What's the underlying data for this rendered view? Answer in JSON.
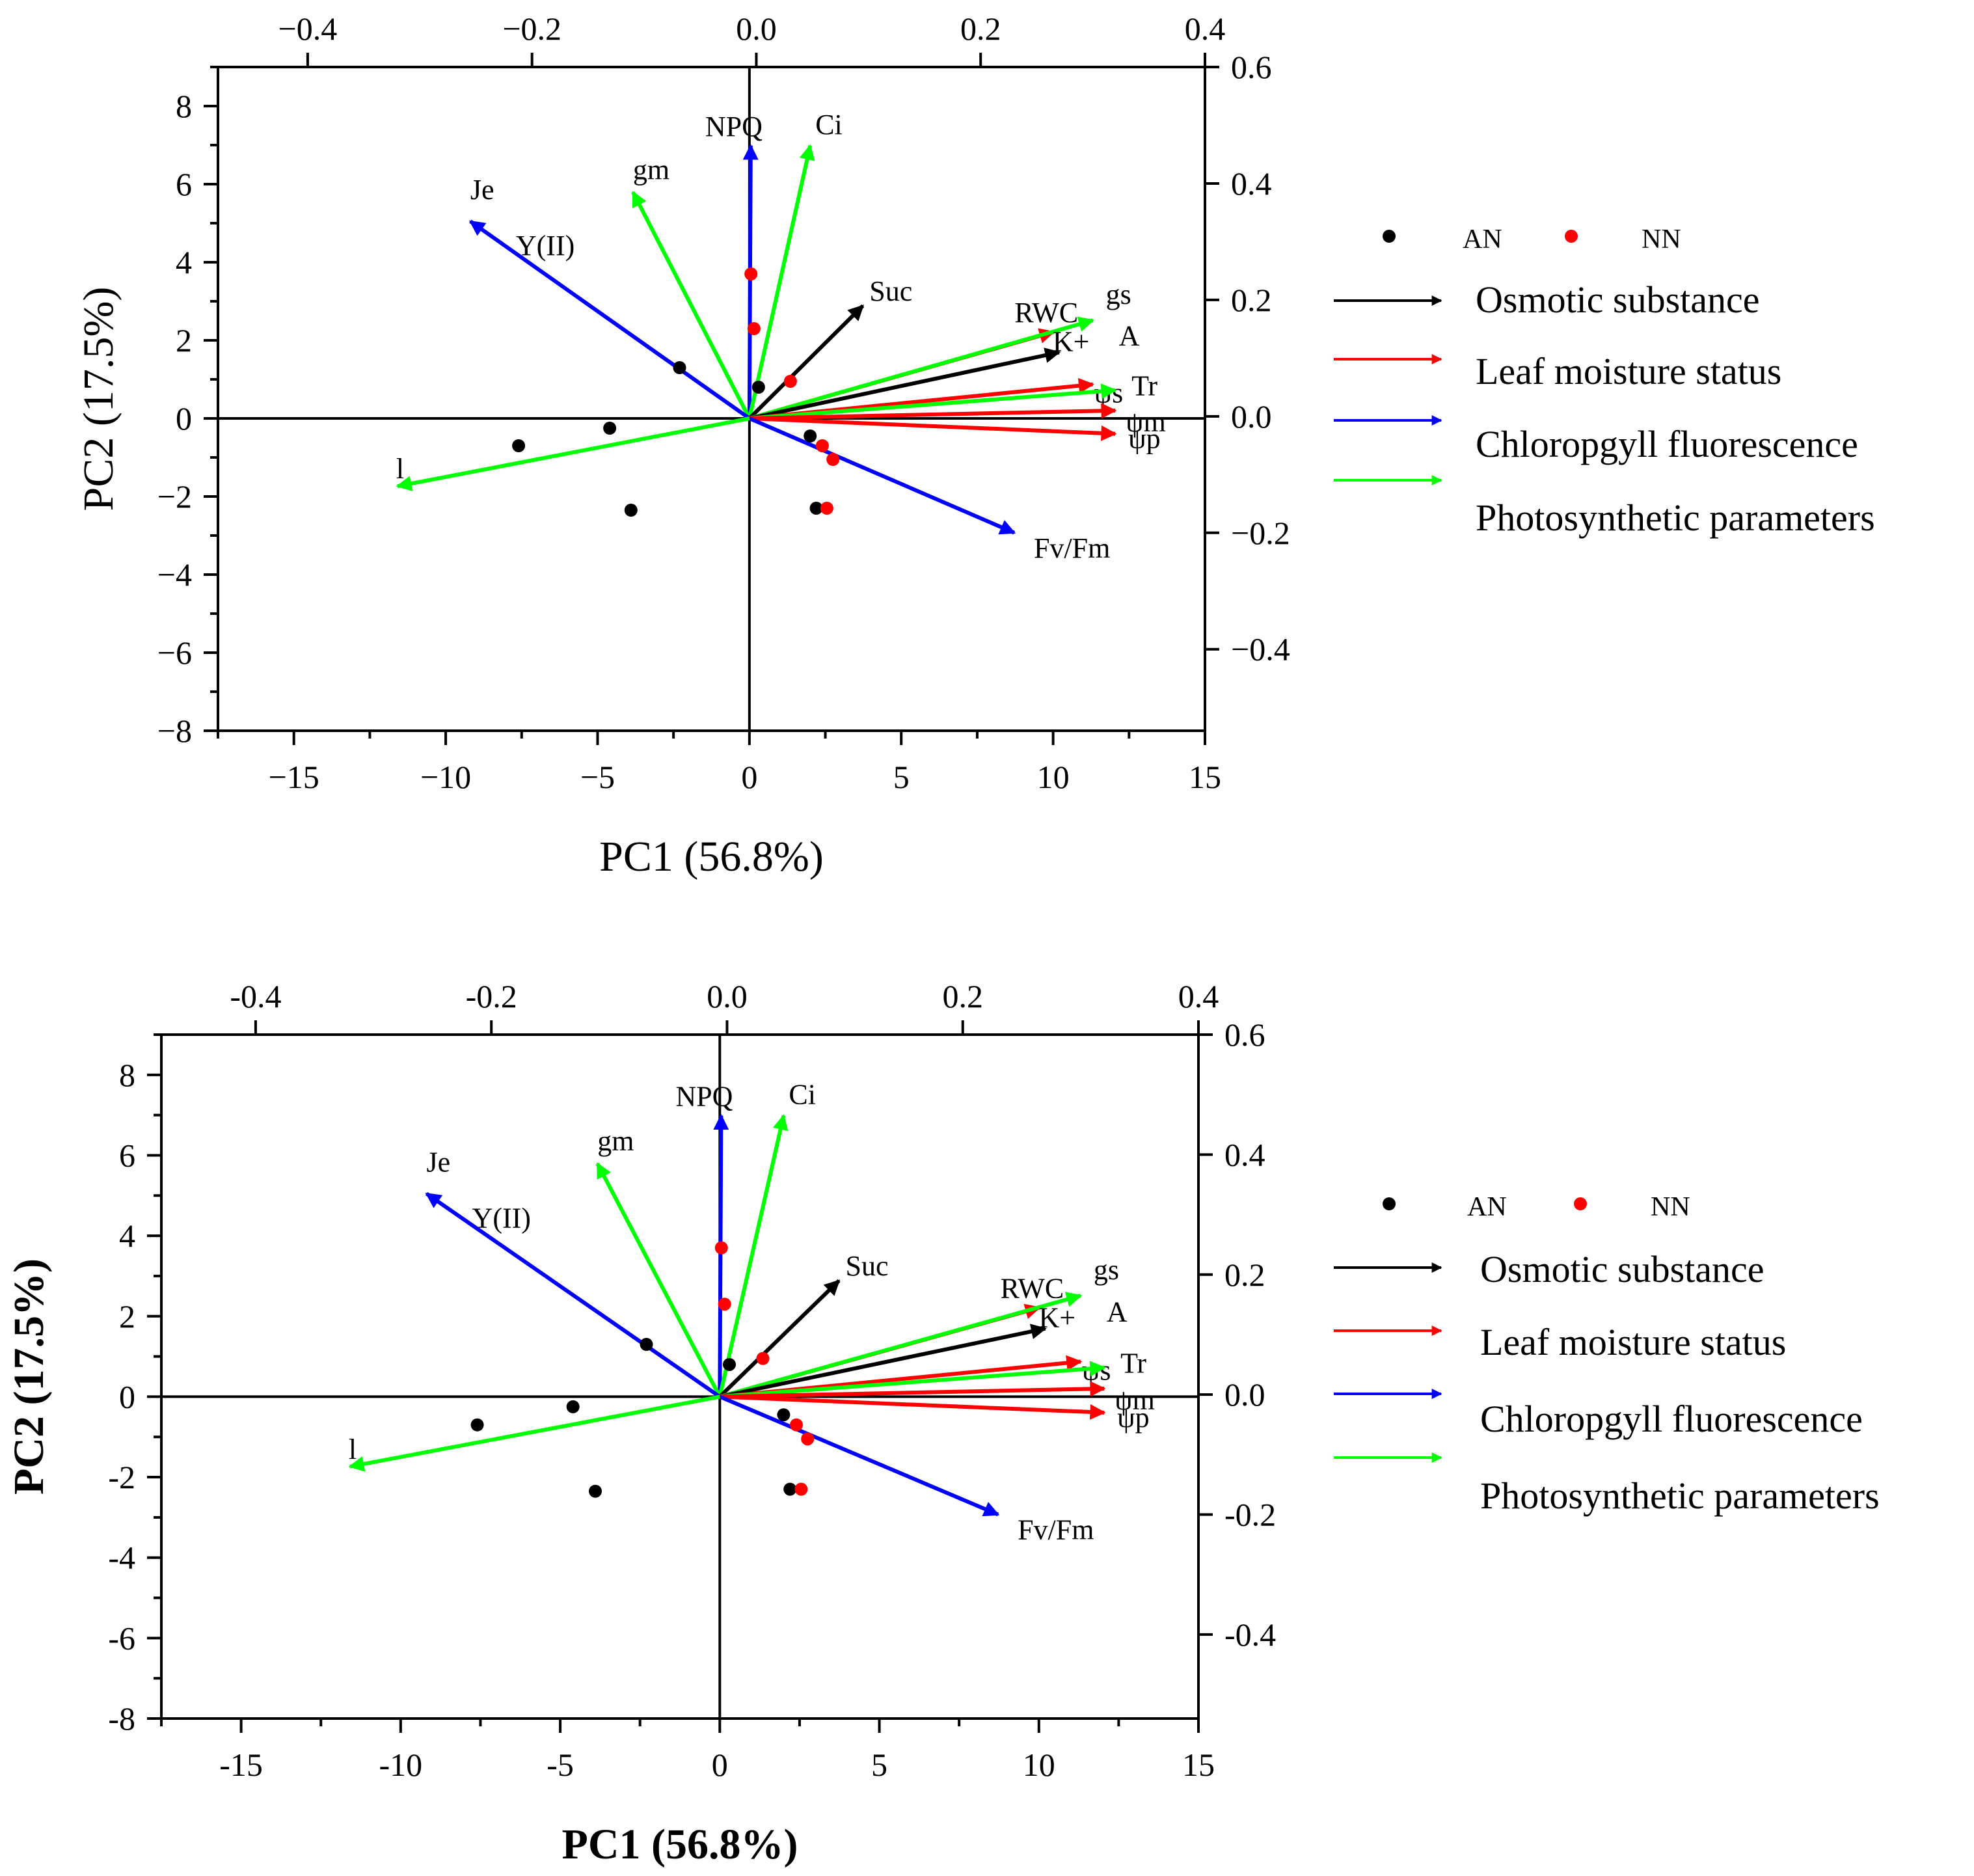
{
  "colors": {
    "osmotic": "#000000",
    "moisture": "#ff0000",
    "fluorescence": "#0000ff",
    "photosynthetic": "#00ff00",
    "AN": "#000000",
    "NN": "#ff0000"
  },
  "chart_data": [
    {
      "type": "scatter",
      "subtype": "pca-biplot",
      "xlabel": "PC1 (56.8%)",
      "ylabel": "PC2 (17.5%)",
      "xlim": [
        -17.5,
        15
      ],
      "ylim": [
        -8,
        9
      ],
      "xticks": [
        "−15",
        "−10",
        "−5",
        "0",
        "5",
        "10",
        "15"
      ],
      "yticks": [
        "−8",
        "−6",
        "−4",
        "−2",
        "0",
        "2",
        "4",
        "6",
        "8"
      ],
      "top_xlim": [
        -0.48,
        0.4
      ],
      "top_xticks": [
        "−0.4",
        "−0.2",
        "0.0",
        "0.2",
        "0.4"
      ],
      "right_ylim": [
        -0.54,
        0.6
      ],
      "right_yticks": [
        "−0.4",
        "−0.2",
        "0.0",
        "0.2",
        "0.4",
        "0.6"
      ],
      "legend": {
        "markers": [
          "AN",
          "NN"
        ],
        "groups": [
          "Osmotic substance",
          "Leaf moisture status",
          "Chloropgyll fluorescence",
          "Photosynthetic parameters"
        ]
      },
      "loadings": [
        {
          "label": "NPQ",
          "group": "fluorescence",
          "x": -0.005,
          "y": 0.465
        },
        {
          "label": "Ci",
          "group": "photosynthetic",
          "x": 0.048,
          "y": 0.465
        },
        {
          "label": "gm",
          "group": "photosynthetic",
          "x": -0.11,
          "y": 0.385
        },
        {
          "label": "Je",
          "group": "fluorescence",
          "x": -0.255,
          "y": 0.335
        },
        {
          "label": "Y(II)",
          "group": "fluorescence",
          "x": -0.255,
          "y": 0.335
        },
        {
          "label": "Suc",
          "group": "osmotic",
          "x": 0.095,
          "y": 0.19
        },
        {
          "label": "RWC",
          "group": "moisture",
          "x": 0.265,
          "y": 0.145
        },
        {
          "label": "gs",
          "group": "photosynthetic",
          "x": 0.3,
          "y": 0.165
        },
        {
          "label": "K+",
          "group": "osmotic",
          "x": 0.27,
          "y": 0.11
        },
        {
          "label": "A",
          "group": "photosynthetic",
          "x": 0.3,
          "y": 0.12
        },
        {
          "label": "ψs",
          "group": "moisture",
          "x": 0.3,
          "y": 0.055
        },
        {
          "label": "Tr",
          "group": "photosynthetic",
          "x": 0.32,
          "y": 0.045
        },
        {
          "label": "ψm",
          "group": "moisture",
          "x": 0.32,
          "y": 0.01
        },
        {
          "label": "ψp",
          "group": "moisture",
          "x": 0.32,
          "y": -0.03
        },
        {
          "label": "Fv/Fm",
          "group": "fluorescence",
          "x": 0.23,
          "y": -0.2
        },
        {
          "label": "l",
          "group": "photosynthetic",
          "x": -0.32,
          "y": -0.12
        }
      ],
      "scores": [
        {
          "group": "AN",
          "x": -7.6,
          "y": -0.7
        },
        {
          "group": "AN",
          "x": -4.6,
          "y": -0.25
        },
        {
          "group": "AN",
          "x": -3.9,
          "y": -2.35
        },
        {
          "group": "AN",
          "x": -2.3,
          "y": 1.3
        },
        {
          "group": "AN",
          "x": 0.3,
          "y": 0.8
        },
        {
          "group": "AN",
          "x": 2.0,
          "y": -0.45
        },
        {
          "group": "AN",
          "x": 2.2,
          "y": -2.3
        },
        {
          "group": "NN",
          "x": 0.05,
          "y": 3.7
        },
        {
          "group": "NN",
          "x": 0.15,
          "y": 2.3
        },
        {
          "group": "NN",
          "x": 1.35,
          "y": 0.95
        },
        {
          "group": "NN",
          "x": 2.4,
          "y": -0.7
        },
        {
          "group": "NN",
          "x": 2.75,
          "y": -1.05
        },
        {
          "group": "NN",
          "x": 2.55,
          "y": -2.3
        }
      ]
    },
    {
      "type": "scatter",
      "subtype": "pca-biplot",
      "xlabel": "PC1 (56.8%)",
      "ylabel": "PC2 (17.5%)",
      "xlim": [
        -17.5,
        15
      ],
      "ylim": [
        -8,
        9
      ],
      "xticks": [
        "-15",
        "-10",
        "-5",
        "0",
        "5",
        "10",
        "15"
      ],
      "yticks": [
        "-8",
        "-6",
        "-4",
        "-2",
        "0",
        "2",
        "4",
        "6",
        "8"
      ],
      "top_xlim": [
        -0.48,
        0.4
      ],
      "top_xticks": [
        "-0.4",
        "-0.2",
        "0.0",
        "0.2",
        "0.4"
      ],
      "right_ylim": [
        -0.54,
        0.6
      ],
      "right_yticks": [
        "-0.4",
        "-0.2",
        "0.0",
        "0.2",
        "0.4",
        "0.6"
      ],
      "legend": {
        "markers": [
          "AN",
          "NN"
        ],
        "groups": [
          "Osmotic substance",
          "Leaf moisture status",
          "Chloropgyll fluorescence",
          "Photosynthetic parameters"
        ]
      },
      "loadings": [
        {
          "label": "NPQ",
          "group": "fluorescence",
          "x": -0.005,
          "y": 0.465
        },
        {
          "label": "Ci",
          "group": "photosynthetic",
          "x": 0.048,
          "y": 0.465
        },
        {
          "label": "gm",
          "group": "photosynthetic",
          "x": -0.11,
          "y": 0.385
        },
        {
          "label": "Je",
          "group": "fluorescence",
          "x": -0.255,
          "y": 0.335
        },
        {
          "label": "Y(II)",
          "group": "fluorescence",
          "x": -0.255,
          "y": 0.335
        },
        {
          "label": "Suc",
          "group": "osmotic",
          "x": 0.095,
          "y": 0.19
        },
        {
          "label": "RWC",
          "group": "moisture",
          "x": 0.265,
          "y": 0.145
        },
        {
          "label": "gs",
          "group": "photosynthetic",
          "x": 0.3,
          "y": 0.165
        },
        {
          "label": "K+",
          "group": "osmotic",
          "x": 0.27,
          "y": 0.11
        },
        {
          "label": "A",
          "group": "photosynthetic",
          "x": 0.3,
          "y": 0.12
        },
        {
          "label": "ψs",
          "group": "moisture",
          "x": 0.3,
          "y": 0.055
        },
        {
          "label": "Tr",
          "group": "photosynthetic",
          "x": 0.32,
          "y": 0.045
        },
        {
          "label": "ψm",
          "group": "moisture",
          "x": 0.32,
          "y": 0.01
        },
        {
          "label": "ψp",
          "group": "moisture",
          "x": 0.32,
          "y": -0.03
        },
        {
          "label": "Fv/Fm",
          "group": "fluorescence",
          "x": 0.23,
          "y": -0.2
        },
        {
          "label": "l",
          "group": "photosynthetic",
          "x": -0.32,
          "y": -0.12
        }
      ],
      "scores": [
        {
          "group": "AN",
          "x": -7.6,
          "y": -0.7
        },
        {
          "group": "AN",
          "x": -4.6,
          "y": -0.25
        },
        {
          "group": "AN",
          "x": -3.9,
          "y": -2.35
        },
        {
          "group": "AN",
          "x": -2.3,
          "y": 1.3
        },
        {
          "group": "AN",
          "x": 0.3,
          "y": 0.8
        },
        {
          "group": "AN",
          "x": 2.0,
          "y": -0.45
        },
        {
          "group": "AN",
          "x": 2.2,
          "y": -2.3
        },
        {
          "group": "NN",
          "x": 0.05,
          "y": 3.7
        },
        {
          "group": "NN",
          "x": 0.15,
          "y": 2.3
        },
        {
          "group": "NN",
          "x": 1.35,
          "y": 0.95
        },
        {
          "group": "NN",
          "x": 2.4,
          "y": -0.7
        },
        {
          "group": "NN",
          "x": 2.75,
          "y": -1.05
        },
        {
          "group": "NN",
          "x": 2.55,
          "y": -2.3
        }
      ]
    }
  ]
}
